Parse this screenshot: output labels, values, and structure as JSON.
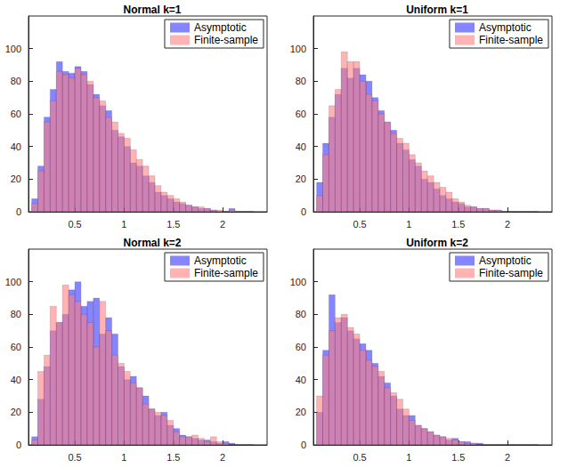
{
  "chart_data": [
    {
      "type": "histogram",
      "title": "Normal k=1",
      "bins": [
        0.0625,
        0.125,
        0.1875,
        0.25,
        0.3125,
        0.375,
        0.4375,
        0.5,
        0.5625,
        0.625,
        0.6875,
        0.75,
        0.8125,
        0.875,
        0.9375,
        1,
        1.0625,
        1.125,
        1.1875,
        1.25,
        1.3125,
        1.375,
        1.4375,
        1.5,
        1.5625,
        1.625,
        1.6875,
        1.75,
        1.8125,
        1.875,
        1.9375,
        2,
        2.0625,
        2.125,
        2.1875,
        2.25,
        2.3125
      ],
      "series": [
        {
          "name": "Asymptotic",
          "color": "#3333ff",
          "values": [
            8,
            28,
            58,
            75,
            92,
            86,
            85,
            89,
            86,
            78,
            72,
            65,
            62,
            50,
            46,
            40,
            30,
            28,
            22,
            18,
            12,
            10,
            8,
            6,
            5,
            4,
            3,
            2,
            2,
            1,
            0,
            0,
            2,
            0,
            0,
            0
          ]
        },
        {
          "name": "Finite-sample",
          "color": "#ff8080",
          "values": [
            5,
            25,
            55,
            68,
            86,
            84,
            82,
            88,
            84,
            80,
            70,
            68,
            58,
            55,
            48,
            45,
            38,
            32,
            28,
            22,
            16,
            12,
            10,
            8,
            6,
            4,
            3,
            3,
            2,
            1,
            1,
            0,
            1,
            0,
            0,
            0
          ]
        }
      ],
      "xlim": [
        0.03,
        2.45
      ],
      "xticks": [
        0.5,
        1,
        1.5,
        2
      ],
      "ylim": [
        0,
        120
      ],
      "yticks": [
        0,
        20,
        40,
        60,
        80,
        100
      ],
      "legend": "upper right"
    },
    {
      "type": "histogram",
      "title": "Uniform k=1",
      "bins": [
        0.0625,
        0.125,
        0.1875,
        0.25,
        0.3125,
        0.375,
        0.4375,
        0.5,
        0.5625,
        0.625,
        0.6875,
        0.75,
        0.8125,
        0.875,
        0.9375,
        1,
        1.0625,
        1.125,
        1.1875,
        1.25,
        1.3125,
        1.375,
        1.4375,
        1.5,
        1.5625,
        1.625,
        1.6875,
        1.75,
        1.8125,
        1.875,
        1.9375,
        2,
        2.0625,
        2.125,
        2.1875,
        2.25,
        2.3125
      ],
      "series": [
        {
          "name": "Asymptotic",
          "color": "#3333ff",
          "values": [
            18,
            42,
            58,
            72,
            88,
            82,
            88,
            84,
            80,
            70,
            62,
            55,
            50,
            42,
            38,
            32,
            28,
            20,
            18,
            14,
            10,
            8,
            6,
            5,
            3,
            3,
            2,
            2,
            1,
            1,
            0,
            0,
            0,
            0,
            0,
            0
          ]
        },
        {
          "name": "Finite-sample",
          "color": "#ff8080",
          "values": [
            10,
            35,
            65,
            75,
            98,
            92,
            92,
            80,
            72,
            68,
            60,
            55,
            48,
            45,
            42,
            35,
            30,
            25,
            22,
            18,
            15,
            12,
            8,
            6,
            4,
            3,
            2,
            2,
            1,
            1,
            0,
            0,
            0,
            0,
            0,
            0
          ]
        }
      ],
      "xlim": [
        0.03,
        2.45
      ],
      "xticks": [
        0.5,
        1,
        1.5,
        2
      ],
      "ylim": [
        0,
        120
      ],
      "yticks": [
        0,
        20,
        40,
        60,
        80,
        100
      ],
      "legend": "upper right"
    },
    {
      "type": "histogram",
      "title": "Normal k=2",
      "bins": [
        0.0625,
        0.125,
        0.1875,
        0.25,
        0.3125,
        0.375,
        0.4375,
        0.5,
        0.5625,
        0.625,
        0.6875,
        0.75,
        0.8125,
        0.875,
        0.9375,
        1,
        1.0625,
        1.125,
        1.1875,
        1.25,
        1.3125,
        1.375,
        1.4375,
        1.5,
        1.5625,
        1.625,
        1.6875,
        1.75,
        1.8125,
        1.875,
        1.9375,
        2,
        2.0625,
        2.125,
        2.1875,
        2.25,
        2.3125
      ],
      "series": [
        {
          "name": "Asymptotic",
          "color": "#3333ff",
          "values": [
            5,
            28,
            48,
            70,
            75,
            80,
            95,
            100,
            85,
            88,
            90,
            68,
            78,
            68,
            48,
            40,
            42,
            35,
            30,
            22,
            18,
            20,
            12,
            10,
            6,
            5,
            4,
            3,
            3,
            2,
            1,
            2,
            1,
            0,
            0,
            0
          ]
        },
        {
          "name": "Finite-sample",
          "color": "#ff8080",
          "values": [
            3,
            45,
            55,
            85,
            75,
            98,
            92,
            88,
            80,
            75,
            60,
            88,
            70,
            55,
            50,
            45,
            38,
            35,
            25,
            22,
            20,
            18,
            15,
            8,
            5,
            5,
            6,
            4,
            2,
            5,
            2,
            1,
            0,
            0,
            0,
            0
          ]
        }
      ],
      "xlim": [
        0.03,
        2.45
      ],
      "xticks": [
        0.5,
        1,
        1.5,
        2
      ],
      "ylim": [
        0,
        120
      ],
      "yticks": [
        0,
        20,
        40,
        60,
        80,
        100
      ],
      "legend": "upper right"
    },
    {
      "type": "histogram",
      "title": "Uniform k=2",
      "bins": [
        0.0625,
        0.125,
        0.1875,
        0.25,
        0.3125,
        0.375,
        0.4375,
        0.5,
        0.5625,
        0.625,
        0.6875,
        0.75,
        0.8125,
        0.875,
        0.9375,
        1,
        1.0625,
        1.125,
        1.1875,
        1.25,
        1.3125,
        1.375,
        1.4375,
        1.5,
        1.5625,
        1.625,
        1.6875,
        1.75,
        1.8125,
        1.875,
        1.9375,
        2,
        2.0625,
        2.125,
        2.1875,
        2.25,
        2.3125
      ],
      "series": [
        {
          "name": "Asymptotic",
          "color": "#3333ff",
          "values": [
            20,
            58,
            92,
            75,
            78,
            70,
            65,
            62,
            58,
            50,
            42,
            38,
            30,
            22,
            18,
            18,
            12,
            10,
            8,
            6,
            5,
            3,
            4,
            2,
            2,
            1,
            1,
            0,
            0,
            0,
            0,
            0,
            0,
            0,
            0,
            0
          ]
        },
        {
          "name": "Finite-sample",
          "color": "#ff8080",
          "values": [
            30,
            55,
            70,
            78,
            80,
            72,
            68,
            58,
            52,
            48,
            45,
            35,
            32,
            28,
            22,
            15,
            12,
            10,
            8,
            6,
            5,
            4,
            3,
            2,
            1,
            1,
            0,
            0,
            0,
            0,
            0,
            0,
            0,
            0,
            0,
            0
          ]
        }
      ],
      "xlim": [
        0.03,
        2.45
      ],
      "xticks": [
        0.5,
        1,
        1.5,
        2
      ],
      "ylim": [
        0,
        120
      ],
      "yticks": [
        0,
        20,
        40,
        60,
        80,
        100
      ],
      "legend": "upper right"
    }
  ]
}
